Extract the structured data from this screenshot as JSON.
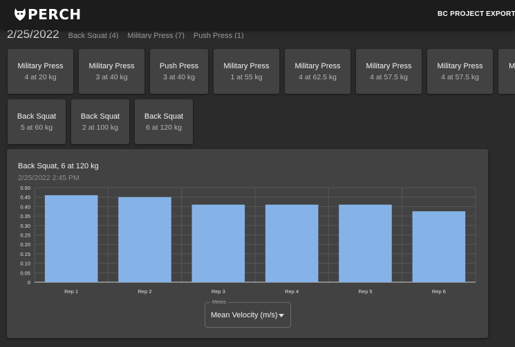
{
  "app": {
    "logo_text": "PERCH",
    "nav": [
      {
        "label": "BC PROJECT"
      },
      {
        "label": "EXPORT"
      }
    ]
  },
  "session": {
    "date": "2/25/2022",
    "lifts": [
      {
        "label": "Back Squat (4)"
      },
      {
        "label": "Military Press (7)"
      },
      {
        "label": "Push Press (1)"
      }
    ]
  },
  "sets_row1": [
    {
      "name": "Military Press",
      "detail": "4 at 20 kg"
    },
    {
      "name": "Military Press",
      "detail": "3 at 40 kg"
    },
    {
      "name": "Push Press",
      "detail": "3 at 40 kg"
    },
    {
      "name": "Military Press",
      "detail": "1 at 55 kg"
    },
    {
      "name": "Military Press",
      "detail": "4 at 62.5 kg"
    },
    {
      "name": "Military Press",
      "detail": "4 at 57.5 kg"
    },
    {
      "name": "Military Press",
      "detail": "4 at 57.5 kg"
    },
    {
      "name": "Military Press",
      "detail": ""
    }
  ],
  "sets_row2": [
    {
      "name": "Back Squat",
      "detail": "5 at 60 kg"
    },
    {
      "name": "Back Squat",
      "detail": "2 at 100 kg"
    },
    {
      "name": "Back Squat",
      "detail": "6 at 120 kg"
    }
  ],
  "chart_panel": {
    "title": "Back Squat, 6 at 120 kg",
    "timestamp": "2/25/2022 2:45 PM"
  },
  "metric_select": {
    "legend": "Metric",
    "value": "Mean Velocity (m/s)"
  },
  "chart_data": {
    "type": "bar",
    "categories": [
      "Rep 1",
      "Rep 2",
      "Rep 3",
      "Rep 4",
      "Rep 5",
      "Rep 6"
    ],
    "values": [
      0.46,
      0.45,
      0.41,
      0.41,
      0.41,
      0.375
    ],
    "ylim": [
      0,
      0.5
    ],
    "yticks": [
      "0",
      "0.05",
      "0.10",
      "0.15",
      "0.20",
      "0.25",
      "0.30",
      "0.35",
      "0.40",
      "0.45",
      "0.50"
    ],
    "grid": true,
    "bar_color": "#85b3e8"
  }
}
